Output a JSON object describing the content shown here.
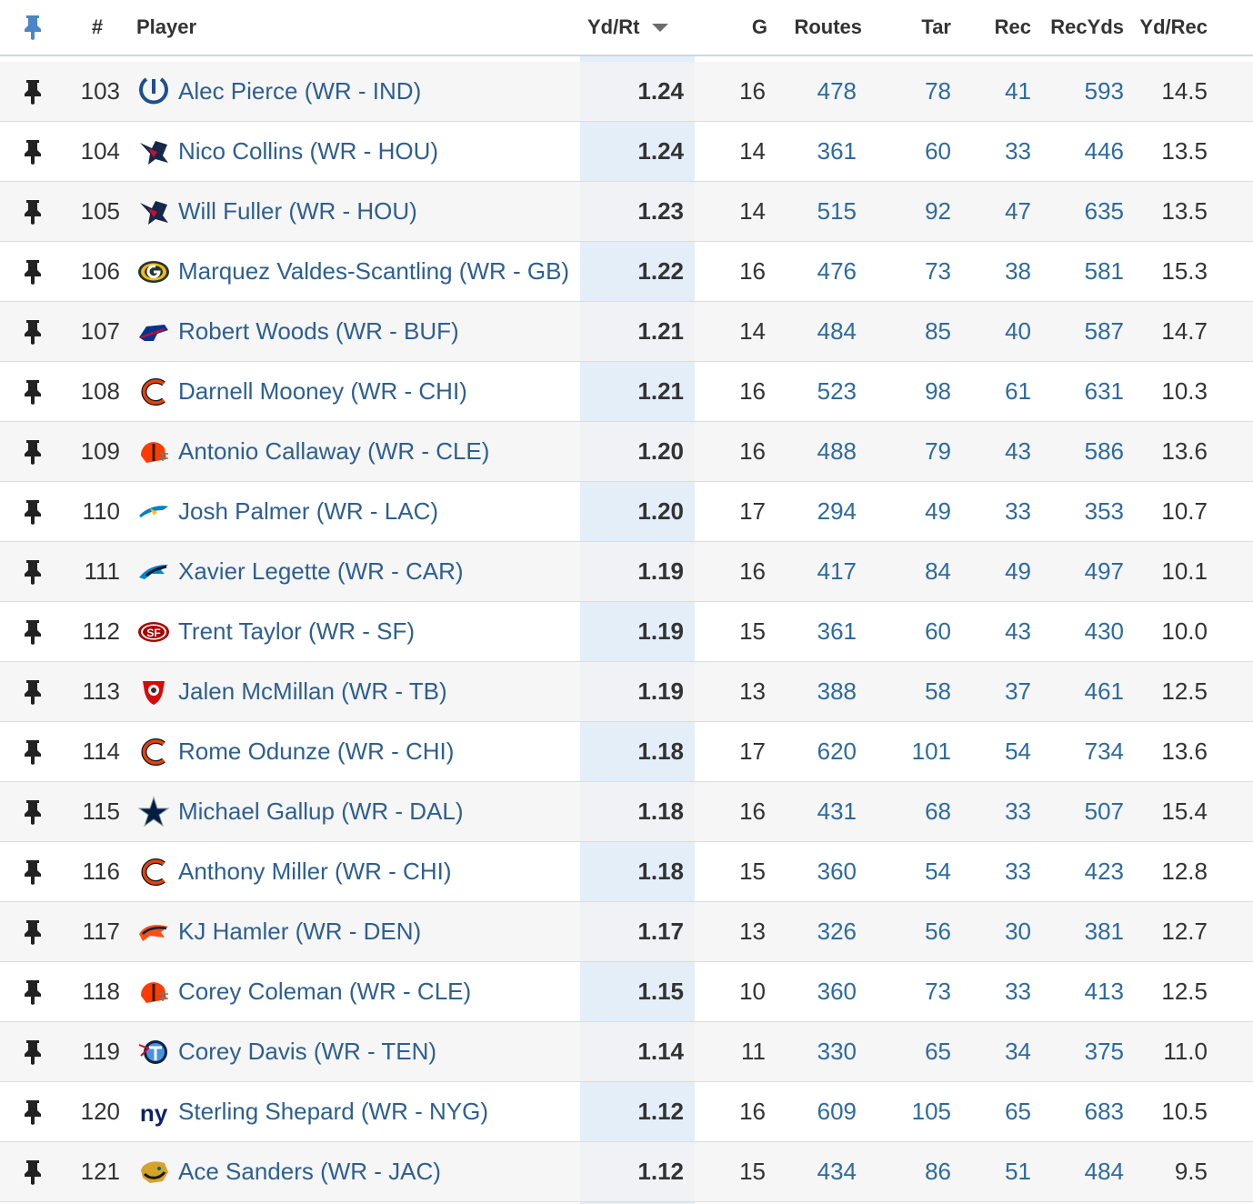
{
  "header": {
    "rank": "#",
    "player": "Player",
    "ydrt": "Yd/Rt",
    "g": "G",
    "routes": "Routes",
    "tar": "Tar",
    "rec": "Rec",
    "recyds": "RecYds",
    "ydrec": "Yd/Rec",
    "pin_icon": "pin-icon",
    "sort_icon": "sort-desc-icon"
  },
  "colors": {
    "link": "#2d5f91",
    "highlight_column": "#e3eef8",
    "pin_header": "#4a86c5"
  },
  "rows": [
    {
      "rank": "103",
      "player": "Alec Pierce (WR - IND)",
      "team": "IND",
      "ydrt": "1.24",
      "g": "16",
      "routes": "478",
      "tar": "78",
      "rec": "41",
      "recyds": "593",
      "ydrec": "14.5"
    },
    {
      "rank": "104",
      "player": "Nico Collins (WR - HOU)",
      "team": "HOU",
      "ydrt": "1.24",
      "g": "14",
      "routes": "361",
      "tar": "60",
      "rec": "33",
      "recyds": "446",
      "ydrec": "13.5"
    },
    {
      "rank": "105",
      "player": "Will Fuller (WR - HOU)",
      "team": "HOU",
      "ydrt": "1.23",
      "g": "14",
      "routes": "515",
      "tar": "92",
      "rec": "47",
      "recyds": "635",
      "ydrec": "13.5"
    },
    {
      "rank": "106",
      "player": "Marquez Valdes-Scantling (WR - GB)",
      "team": "GB",
      "ydrt": "1.22",
      "g": "16",
      "routes": "476",
      "tar": "73",
      "rec": "38",
      "recyds": "581",
      "ydrec": "15.3"
    },
    {
      "rank": "107",
      "player": "Robert Woods (WR - BUF)",
      "team": "BUF",
      "ydrt": "1.21",
      "g": "14",
      "routes": "484",
      "tar": "85",
      "rec": "40",
      "recyds": "587",
      "ydrec": "14.7"
    },
    {
      "rank": "108",
      "player": "Darnell Mooney (WR - CHI)",
      "team": "CHI",
      "ydrt": "1.21",
      "g": "16",
      "routes": "523",
      "tar": "98",
      "rec": "61",
      "recyds": "631",
      "ydrec": "10.3"
    },
    {
      "rank": "109",
      "player": "Antonio Callaway (WR - CLE)",
      "team": "CLE",
      "ydrt": "1.20",
      "g": "16",
      "routes": "488",
      "tar": "79",
      "rec": "43",
      "recyds": "586",
      "ydrec": "13.6"
    },
    {
      "rank": "110",
      "player": "Josh Palmer (WR - LAC)",
      "team": "LAC",
      "ydrt": "1.20",
      "g": "17",
      "routes": "294",
      "tar": "49",
      "rec": "33",
      "recyds": "353",
      "ydrec": "10.7"
    },
    {
      "rank": "111",
      "player": "Xavier Legette (WR - CAR)",
      "team": "CAR",
      "ydrt": "1.19",
      "g": "16",
      "routes": "417",
      "tar": "84",
      "rec": "49",
      "recyds": "497",
      "ydrec": "10.1"
    },
    {
      "rank": "112",
      "player": "Trent Taylor (WR - SF)",
      "team": "SF",
      "ydrt": "1.19",
      "g": "15",
      "routes": "361",
      "tar": "60",
      "rec": "43",
      "recyds": "430",
      "ydrec": "10.0"
    },
    {
      "rank": "113",
      "player": "Jalen McMillan (WR - TB)",
      "team": "TB",
      "ydrt": "1.19",
      "g": "13",
      "routes": "388",
      "tar": "58",
      "rec": "37",
      "recyds": "461",
      "ydrec": "12.5"
    },
    {
      "rank": "114",
      "player": "Rome Odunze (WR - CHI)",
      "team": "CHI",
      "ydrt": "1.18",
      "g": "17",
      "routes": "620",
      "tar": "101",
      "rec": "54",
      "recyds": "734",
      "ydrec": "13.6"
    },
    {
      "rank": "115",
      "player": "Michael Gallup (WR - DAL)",
      "team": "DAL",
      "ydrt": "1.18",
      "g": "16",
      "routes": "431",
      "tar": "68",
      "rec": "33",
      "recyds": "507",
      "ydrec": "15.4"
    },
    {
      "rank": "116",
      "player": "Anthony Miller (WR - CHI)",
      "team": "CHI",
      "ydrt": "1.18",
      "g": "15",
      "routes": "360",
      "tar": "54",
      "rec": "33",
      "recyds": "423",
      "ydrec": "12.8"
    },
    {
      "rank": "117",
      "player": "KJ Hamler (WR - DEN)",
      "team": "DEN",
      "ydrt": "1.17",
      "g": "13",
      "routes": "326",
      "tar": "56",
      "rec": "30",
      "recyds": "381",
      "ydrec": "12.7"
    },
    {
      "rank": "118",
      "player": "Corey Coleman (WR - CLE)",
      "team": "CLE",
      "ydrt": "1.15",
      "g": "10",
      "routes": "360",
      "tar": "73",
      "rec": "33",
      "recyds": "413",
      "ydrec": "12.5"
    },
    {
      "rank": "119",
      "player": "Corey Davis (WR - TEN)",
      "team": "TEN",
      "ydrt": "1.14",
      "g": "11",
      "routes": "330",
      "tar": "65",
      "rec": "34",
      "recyds": "375",
      "ydrec": "11.0"
    },
    {
      "rank": "120",
      "player": "Sterling Shepard (WR - NYG)",
      "team": "NYG",
      "ydrt": "1.12",
      "g": "16",
      "routes": "609",
      "tar": "105",
      "rec": "65",
      "recyds": "683",
      "ydrec": "10.5"
    },
    {
      "rank": "121",
      "player": "Ace Sanders (WR - JAC)",
      "team": "JAC",
      "ydrt": "1.12",
      "g": "15",
      "routes": "434",
      "tar": "86",
      "rec": "51",
      "recyds": "484",
      "ydrec": "9.5"
    }
  ]
}
